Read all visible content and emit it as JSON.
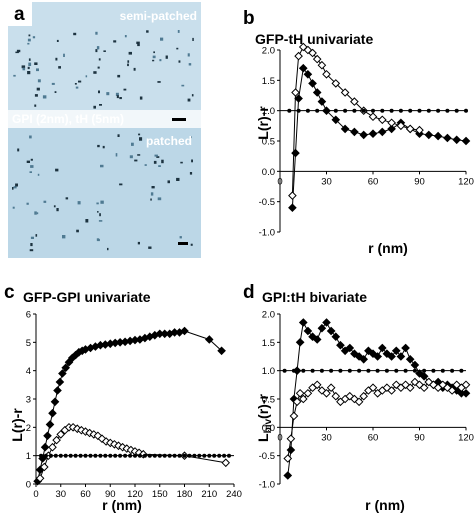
{
  "panel_a": {
    "letter": "a",
    "label_top": "semi-patched",
    "label_mid": "GPI (2nm), tH (5nm)",
    "label_bottom": "patched"
  },
  "chart_data": [
    {
      "panel": "b",
      "type": "line",
      "title": "GFP-tH univariate",
      "xlabel": "r (nm)",
      "ylabel": "L(r)-r",
      "xlim": [
        0,
        120
      ],
      "ylim": [
        -1.0,
        2.0
      ],
      "xticks": [
        "0",
        "30",
        "60",
        "90",
        "120"
      ],
      "yticks": [
        "-1.0",
        "-0.5",
        "0.0",
        "0.5",
        "1.0",
        "1.5",
        "2.0"
      ],
      "series": [
        {
          "marker": "filled-diamond",
          "x": [
            8,
            10,
            12,
            15,
            18,
            21,
            24,
            27,
            30,
            36,
            42,
            48,
            54,
            60,
            66,
            72,
            78,
            84,
            90,
            96,
            102,
            108,
            114,
            120
          ],
          "y": [
            -0.6,
            0.3,
            1.2,
            1.7,
            1.6,
            1.45,
            1.3,
            1.15,
            1.0,
            0.85,
            0.7,
            0.65,
            0.6,
            0.62,
            0.65,
            0.7,
            0.8,
            0.7,
            0.62,
            0.6,
            0.58,
            0.55,
            0.52,
            0.5
          ]
        },
        {
          "marker": "open-diamond",
          "x": [
            8,
            10,
            12,
            15,
            18,
            21,
            24,
            27,
            30,
            36,
            42,
            48,
            54,
            60,
            66,
            72,
            78,
            84,
            90
          ],
          "y": [
            -0.4,
            1.3,
            1.9,
            2.05,
            2.0,
            1.95,
            1.85,
            1.75,
            1.6,
            1.45,
            1.3,
            1.15,
            1.0,
            0.9,
            0.85,
            0.8,
            0.75,
            0.7,
            0.68
          ]
        },
        {
          "marker": "small-dot",
          "x": [
            6,
            12,
            18,
            24,
            30,
            36,
            42,
            48,
            54,
            60,
            66,
            72,
            78,
            84,
            90,
            96,
            102,
            108,
            114,
            120
          ],
          "y": [
            1,
            1,
            1,
            1,
            1,
            1,
            1,
            1,
            1,
            1,
            1,
            1,
            1,
            1,
            1,
            1,
            1,
            1,
            1,
            1
          ]
        }
      ]
    },
    {
      "panel": "c",
      "type": "line",
      "title": "GFP-GPI univariate",
      "xlabel": "r (nm)",
      "ylabel": "L(r)-r",
      "xlim": [
        0,
        240
      ],
      "ylim": [
        0,
        6
      ],
      "xticks": [
        "0",
        "30",
        "60",
        "90",
        "120",
        "150",
        "180",
        "210",
        "240"
      ],
      "yticks": [
        "0",
        "1",
        "2",
        "3",
        "4",
        "5",
        "6"
      ],
      "series": [
        {
          "marker": "filled-diamond",
          "x": [
            2,
            5,
            8,
            11,
            14,
            17,
            20,
            23,
            26,
            29,
            32,
            36,
            40,
            44,
            48,
            52,
            56,
            60,
            66,
            72,
            78,
            84,
            90,
            96,
            102,
            108,
            114,
            120,
            126,
            132,
            138,
            144,
            150,
            156,
            162,
            168,
            174,
            180,
            210,
            225
          ],
          "y": [
            0.1,
            0.5,
            0.9,
            1.3,
            1.7,
            2.1,
            2.5,
            2.9,
            3.3,
            3.6,
            3.9,
            4.1,
            4.3,
            4.45,
            4.55,
            4.65,
            4.7,
            4.75,
            4.8,
            4.85,
            4.9,
            4.92,
            4.95,
            4.98,
            5.0,
            5.02,
            5.05,
            5.08,
            5.1,
            5.15,
            5.2,
            5.25,
            5.3,
            5.3,
            5.3,
            5.35,
            5.35,
            5.4,
            5.1,
            4.7
          ]
        },
        {
          "marker": "open-diamond",
          "x": [
            5,
            10,
            15,
            20,
            25,
            30,
            35,
            40,
            45,
            50,
            55,
            60,
            65,
            70,
            75,
            80,
            85,
            90,
            95,
            100,
            105,
            110,
            115,
            120,
            125,
            130,
            180,
            230
          ],
          "y": [
            0.2,
            0.6,
            1.0,
            1.3,
            1.55,
            1.75,
            1.9,
            2.0,
            2.0,
            1.95,
            1.9,
            1.85,
            1.8,
            1.75,
            1.7,
            1.6,
            1.5,
            1.45,
            1.4,
            1.35,
            1.3,
            1.25,
            1.2,
            1.15,
            1.1,
            1.05,
            1.0,
            0.75
          ]
        },
        {
          "marker": "small-dot",
          "x": [
            6,
            12,
            18,
            24,
            30,
            36,
            42,
            48,
            54,
            60,
            66,
            72,
            78,
            84,
            90,
            96,
            102,
            108,
            114,
            120,
            126,
            132,
            138,
            144,
            150,
            156,
            162,
            168,
            174,
            180,
            186,
            192,
            198,
            204,
            210,
            216,
            222,
            228,
            234
          ],
          "y": [
            1,
            1,
            1,
            1,
            1,
            1,
            1,
            1,
            1,
            1,
            1,
            1,
            1,
            1,
            1,
            1,
            1,
            1,
            1,
            1,
            1,
            1,
            1,
            1,
            1,
            1,
            1,
            1,
            1,
            1,
            1,
            1,
            1,
            1,
            1,
            1,
            1,
            1,
            1
          ]
        }
      ]
    },
    {
      "panel": "d",
      "type": "line",
      "title": "GPI:tH bivariate",
      "xlabel": "r (nm)",
      "ylabel": "L",
      "ylabel_sub": "biv",
      "ylabel_rest": "(r)-r",
      "xlim": [
        0,
        120
      ],
      "ylim": [
        -1.0,
        2.0
      ],
      "xticks": [
        "0",
        "30",
        "60",
        "90",
        "120"
      ],
      "yticks": [
        "-1.0",
        "-0.5",
        "0.0",
        "0.5",
        "1.0",
        "1.5",
        "2.0"
      ],
      "series": [
        {
          "marker": "filled-diamond",
          "x": [
            5,
            7,
            9,
            11,
            13,
            15,
            18,
            21,
            24,
            27,
            30,
            33,
            36,
            39,
            42,
            45,
            48,
            51,
            54,
            57,
            60,
            63,
            66,
            69,
            72,
            75,
            78,
            81,
            84,
            87,
            90,
            93,
            96,
            99,
            102,
            105,
            108,
            111,
            114,
            117,
            120
          ],
          "y": [
            -0.85,
            -0.4,
            0.5,
            1.0,
            1.5,
            1.85,
            1.7,
            1.6,
            1.55,
            1.75,
            1.85,
            1.7,
            1.6,
            1.45,
            1.35,
            1.4,
            1.3,
            1.25,
            1.2,
            1.35,
            1.3,
            1.25,
            1.4,
            1.3,
            1.25,
            1.35,
            1.25,
            1.4,
            1.2,
            1.1,
            0.95,
            0.9,
            0.8,
            0.75,
            0.8,
            0.7,
            0.75,
            0.7,
            0.65,
            0.6,
            0.6
          ]
        },
        {
          "marker": "open-diamond",
          "x": [
            5,
            7,
            9,
            11,
            13,
            15,
            18,
            21,
            24,
            27,
            30,
            33,
            36,
            39,
            42,
            45,
            48,
            51,
            54,
            57,
            60,
            63,
            66,
            69,
            72,
            75,
            78,
            81,
            84,
            87,
            90,
            93,
            96,
            99,
            102,
            105,
            108,
            111,
            114,
            117,
            120
          ],
          "y": [
            -0.55,
            -0.2,
            0.2,
            0.45,
            0.6,
            0.5,
            0.6,
            0.7,
            0.75,
            0.65,
            0.6,
            0.7,
            0.55,
            0.45,
            0.5,
            0.55,
            0.5,
            0.45,
            0.55,
            0.65,
            0.7,
            0.6,
            0.65,
            0.7,
            0.65,
            0.75,
            0.7,
            0.75,
            0.7,
            0.8,
            0.75,
            0.7,
            0.8,
            0.75,
            0.7,
            0.75,
            0.7,
            0.65,
            0.75,
            0.7,
            0.75
          ]
        },
        {
          "marker": "small-dot",
          "x": [
            3,
            9,
            15,
            21,
            27,
            33,
            39,
            45,
            51,
            57,
            63,
            69,
            75,
            81,
            87,
            93,
            99,
            105,
            111,
            117
          ],
          "y": [
            1,
            1,
            1,
            1,
            1,
            1,
            1,
            1,
            1,
            1,
            1,
            1,
            1,
            1,
            1,
            1,
            1,
            1,
            1,
            1
          ]
        }
      ]
    }
  ]
}
